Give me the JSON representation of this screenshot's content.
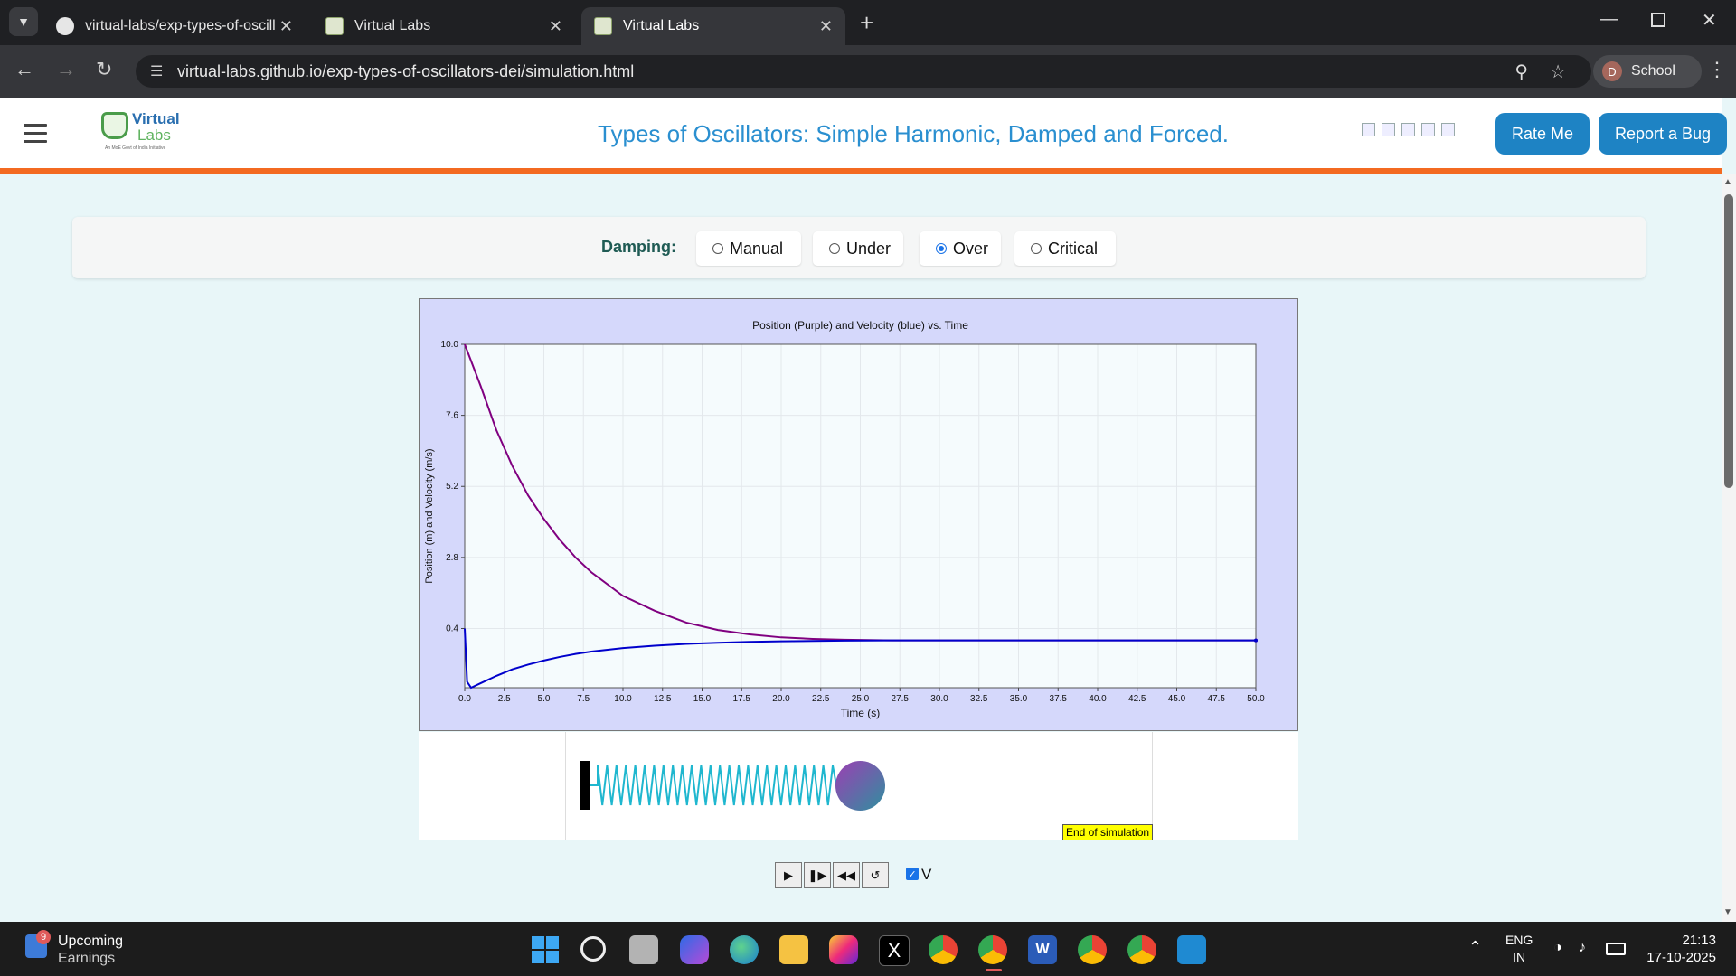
{
  "browser": {
    "tabs": [
      {
        "title": "virtual-labs/exp-types-of-oscilla",
        "active": false
      },
      {
        "title": "Virtual Labs",
        "active": false
      },
      {
        "title": "Virtual Labs",
        "active": true
      }
    ],
    "url": "virtual-labs.github.io/exp-types-of-oscillators-dei/simulation.html",
    "profile_initial": "D",
    "profile_label": "School"
  },
  "header": {
    "logo_text": "Virtual",
    "logo_sub": "Labs",
    "logo_tag": "An MoE Govt of India Initiative",
    "title": "Types of Oscillators: Simple Harmonic, Damped and Forced.",
    "rate_label": "Rate Me",
    "bug_label": "Report a Bug"
  },
  "damping": {
    "label": "Damping:",
    "options": [
      "Manual",
      "Under",
      "Over",
      "Critical"
    ],
    "selected": "Over"
  },
  "chart_data": {
    "type": "line",
    "title": "Position (Purple) and Velocity (blue) vs. Time",
    "xlabel": "Time (s)",
    "ylabel": "Position (m) and Velocity (m/s)",
    "xlim": [
      0,
      50
    ],
    "ylim": [
      -1.6,
      10.0
    ],
    "xticks": [
      "0.0",
      "2.5",
      "5.0",
      "7.5",
      "10.0",
      "12.5",
      "15.0",
      "17.5",
      "20.0",
      "22.5",
      "25.0",
      "27.5",
      "30.0",
      "32.5",
      "35.0",
      "37.5",
      "40.0",
      "42.5",
      "45.0",
      "47.5",
      "50.0"
    ],
    "yticks": [
      "10.0",
      "7.6",
      "5.2",
      "2.8",
      "0.4"
    ],
    "grid": true,
    "series": [
      {
        "name": "Position",
        "color": "#800080",
        "x": [
          0,
          1,
          2,
          3,
          4,
          5,
          6,
          7,
          8,
          10,
          12,
          14,
          16,
          18,
          20,
          22,
          24,
          27,
          30,
          35,
          40,
          45,
          50
        ],
        "y": [
          10.0,
          8.6,
          7.1,
          5.9,
          4.9,
          4.1,
          3.4,
          2.8,
          2.3,
          1.5,
          1.0,
          0.6,
          0.35,
          0.2,
          0.1,
          0.05,
          0.02,
          0.0,
          0.0,
          0.0,
          0.0,
          0.0,
          0.0
        ]
      },
      {
        "name": "Velocity",
        "color": "#0000cc",
        "x": [
          0,
          0.15,
          0.4,
          1,
          2,
          3,
          4,
          5,
          6,
          7,
          8,
          10,
          12,
          14,
          16,
          18,
          20,
          22,
          24,
          27,
          30,
          35,
          40,
          45,
          50
        ],
        "y": [
          0.4,
          -1.4,
          -1.6,
          -1.45,
          -1.2,
          -0.98,
          -0.82,
          -0.68,
          -0.56,
          -0.46,
          -0.38,
          -0.26,
          -0.18,
          -0.12,
          -0.08,
          -0.05,
          -0.03,
          -0.02,
          -0.01,
          0.0,
          0.0,
          0.0,
          0.0,
          0.0,
          0.0
        ]
      }
    ]
  },
  "simulation": {
    "end_label": "End of simulation",
    "v_label": "V",
    "v_checked": true
  },
  "taskbar": {
    "weather_badge": "9",
    "weather_title": "Upcoming",
    "weather_sub": "Earnings",
    "lang_top": "ENG",
    "lang_bottom": "IN",
    "time": "21:13",
    "date": "17-10-2025"
  }
}
